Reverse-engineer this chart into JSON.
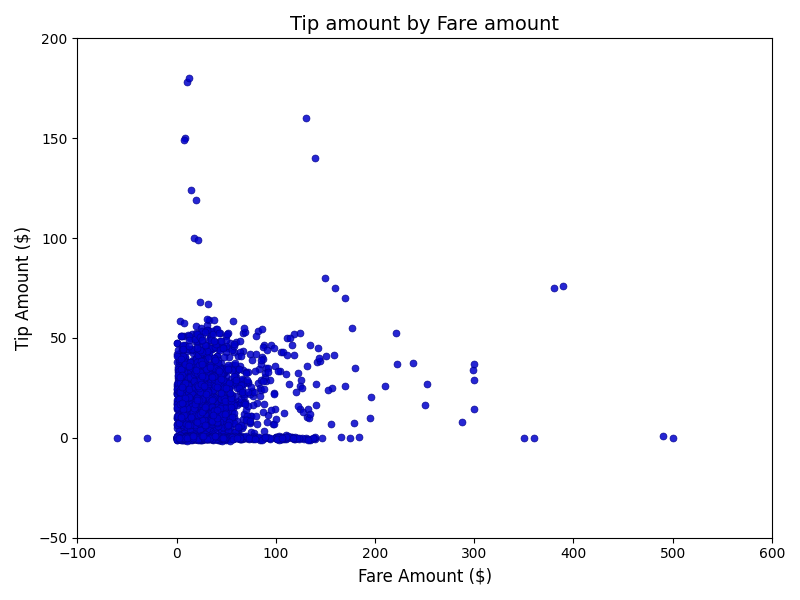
{
  "title": "Tip amount by Fare amount",
  "xlabel": "Fare Amount ($)",
  "ylabel": "Tip Amount ($)",
  "xlim": [
    -100,
    600
  ],
  "ylim": [
    -50,
    200
  ],
  "xticks": [
    -100,
    0,
    100,
    200,
    300,
    400,
    500,
    600
  ],
  "yticks": [
    -50,
    0,
    50,
    100,
    150,
    200
  ],
  "dot_color": "#0000cc",
  "dot_size": 25,
  "dot_alpha": 0.85,
  "seed": 42,
  "background_color": "#ffffff",
  "figsize": [
    8.0,
    6.0
  ],
  "dpi": 100
}
